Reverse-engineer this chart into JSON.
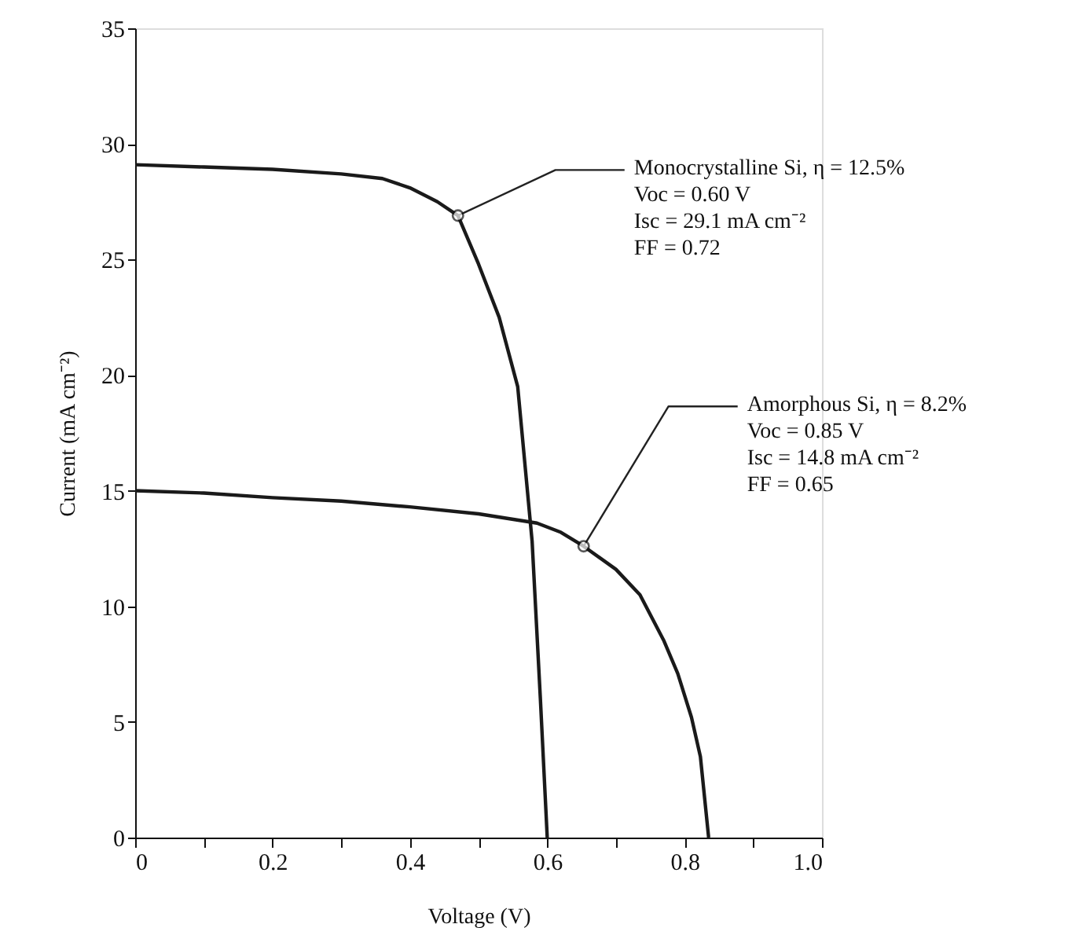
{
  "chart_data": {
    "type": "line",
    "xlabel": "Voltage (V)",
    "ylabel": "Current (mA cm⁻²)",
    "xlim": [
      0,
      1.0
    ],
    "ylim": [
      0,
      35
    ],
    "xticks": [
      {
        "value": 0,
        "label": "0"
      },
      0.2,
      0.4,
      0.6,
      0.8,
      {
        "value": 1.0,
        "label": "1.0"
      },
      {
        "value": 0.1,
        "label": null
      },
      {
        "value": 0.3,
        "label": null
      },
      {
        "value": 0.5,
        "label": null
      },
      {
        "value": 0.7,
        "label": null
      },
      {
        "value": 0.9,
        "label": null
      }
    ],
    "yticks": [
      0,
      5,
      10,
      15,
      20,
      25,
      30,
      35
    ],
    "grid": false,
    "marker": "none",
    "line_style": "solid",
    "series": [
      {
        "color": "#1a1a1a",
        "x": [
          0,
          0.1,
          0.2,
          0.3,
          0.36,
          0.4,
          0.44,
          0.47,
          0.5,
          0.53,
          0.557,
          0.578,
          0.59,
          0.6
        ],
        "values": [
          29.1,
          29.0,
          28.9,
          28.7,
          28.5,
          28.1,
          27.5,
          26.9,
          24.8,
          22.5,
          19.5,
          12.8,
          6,
          0
        ]
      },
      {
        "color": "#1a1a1a",
        "x": [
          0,
          0.1,
          0.2,
          0.3,
          0.4,
          0.5,
          0.585,
          0.62,
          0.653,
          0.7,
          0.735,
          0.77,
          0.79,
          0.81,
          0.823,
          0.835
        ],
        "values": [
          15.0,
          14.9,
          14.7,
          14.55,
          14.3,
          14.0,
          13.6,
          13.2,
          12.6,
          11.6,
          10.5,
          8.5,
          7.1,
          5.2,
          3.5,
          0
        ]
      }
    ],
    "annotations": [
      {
        "text": "Monocrystalline Si, η = 12.5%\nVoc = 0.60 V\nIsc = 29.1 mA cm⁻²\nFF = 0.72",
        "x": 0.47,
        "y": 26.9
      },
      {
        "text": "Amorphous Si, η = 8.2%\nVoc = 0.85 V\nIsc = 14.8 mA cm⁻²\nFF = 0.65",
        "x": 0.653,
        "y": 12.6
      }
    ]
  }
}
